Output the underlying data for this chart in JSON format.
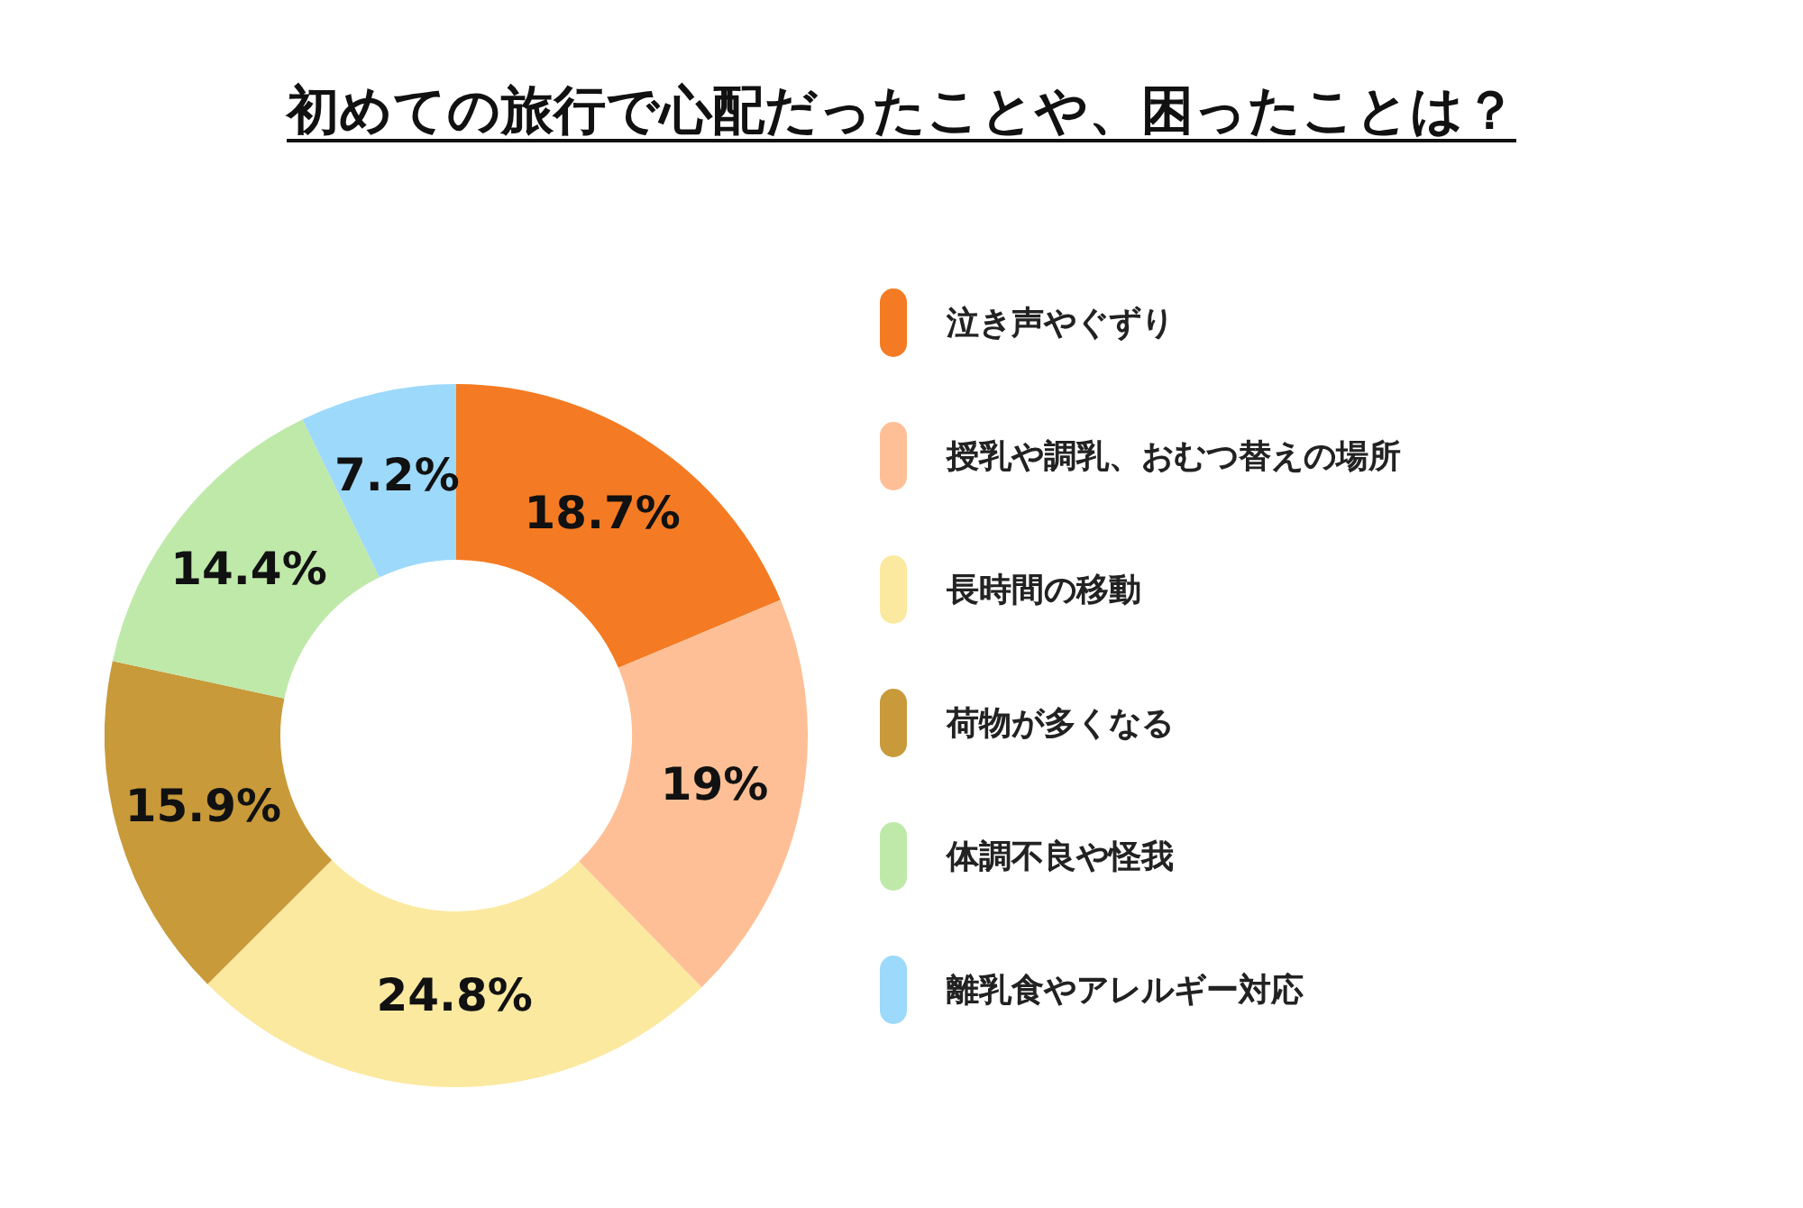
{
  "chart_data": {
    "type": "donut",
    "title": "初めての旅行で心配だったことや、困ったことは？",
    "categories": [
      "泣き声やぐずり",
      "授乳や調乳、おむつ替えの場所",
      "長時間の移動",
      "荷物が多くなる",
      "体調不良や怪我",
      "離乳食やアレルギー対応"
    ],
    "values": [
      18.7,
      19,
      24.8,
      15.9,
      14.4,
      7.2
    ],
    "value_labels": [
      "18.7%",
      "19%",
      "24.8%",
      "15.9%",
      "14.4%",
      "7.2%"
    ],
    "colors": [
      "#f47b23",
      "#ffbf96",
      "#fbe9a0",
      "#c89a3a",
      "#bfe9a9",
      "#9dd9fb"
    ],
    "legend": "right"
  }
}
